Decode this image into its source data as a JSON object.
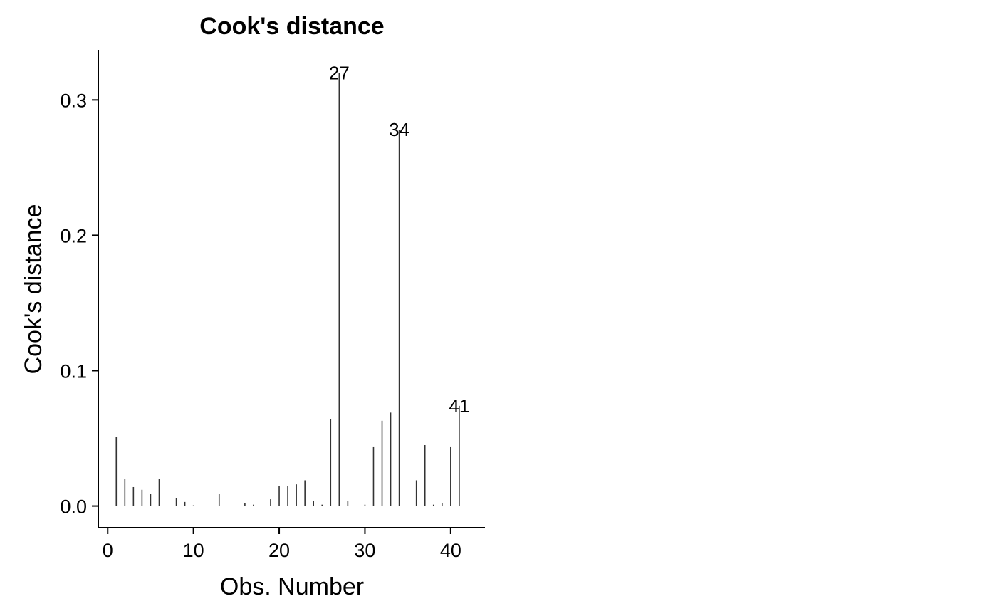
{
  "chart_data": {
    "type": "bar",
    "title": "Cook's distance",
    "xlabel": "Obs. Number",
    "ylabel": "Cook's distance",
    "xlim": [
      -1.1,
      44
    ],
    "ylim": [
      -0.016,
      0.337
    ],
    "xticks": [
      0,
      10,
      20,
      30,
      40
    ],
    "yticks": [
      0.0,
      0.1,
      0.2,
      0.3
    ],
    "ytick_labels": [
      "0.0",
      "0.1",
      "0.2",
      "0.3"
    ],
    "grid": false,
    "x": [
      1,
      2,
      3,
      4,
      5,
      6,
      7,
      8,
      9,
      10,
      11,
      12,
      13,
      14,
      15,
      16,
      17,
      18,
      19,
      20,
      21,
      22,
      23,
      24,
      25,
      26,
      27,
      28,
      29,
      30,
      31,
      32,
      33,
      34,
      35,
      36,
      37,
      38,
      39,
      40,
      41
    ],
    "values": [
      0.051,
      0.02,
      0.014,
      0.012,
      0.009,
      0.02,
      0.0,
      0.006,
      0.003,
      0.0005,
      0.0,
      0.0,
      0.009,
      0.0,
      0.0,
      0.002,
      0.001,
      0.0,
      0.005,
      0.015,
      0.015,
      0.016,
      0.019,
      0.004,
      0.001,
      0.064,
      0.32,
      0.004,
      0.0,
      0.001,
      0.044,
      0.063,
      0.069,
      0.278,
      0.0,
      0.019,
      0.045,
      0.001,
      0.002,
      0.044,
      0.074
    ],
    "annotations": [
      {
        "x": 27,
        "y": 0.32,
        "label": "27"
      },
      {
        "x": 34,
        "y": 0.278,
        "label": "34"
      },
      {
        "x": 41,
        "y": 0.074,
        "label": "41"
      }
    ],
    "bar_color": "#333333"
  }
}
